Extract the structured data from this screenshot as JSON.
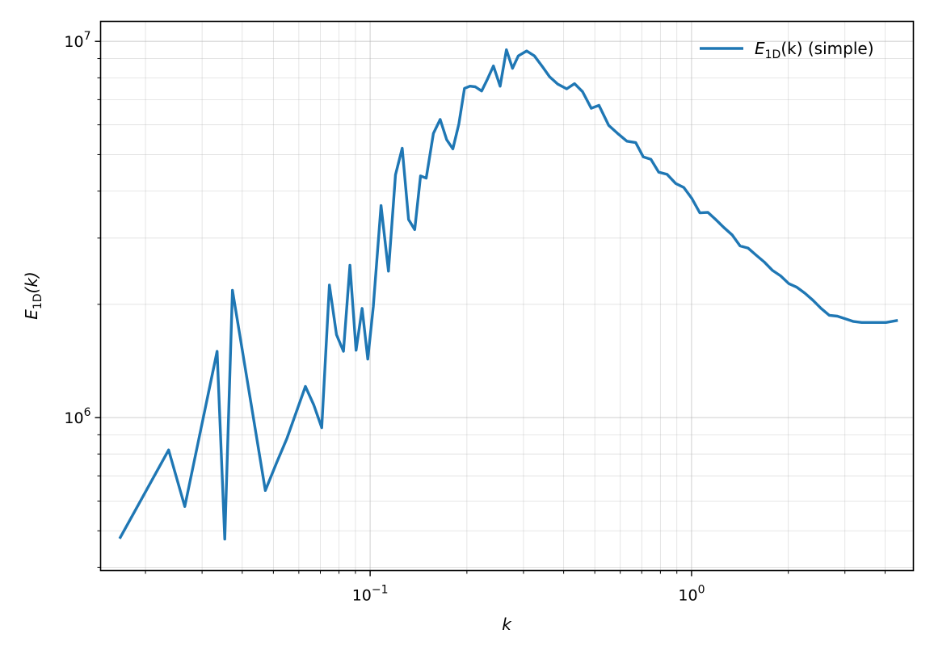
{
  "chart_data": {
    "type": "line",
    "x_scale": "log",
    "y_scale": "log",
    "xlim": [
      0.0145,
      4.9
    ],
    "ylim": [
      392000,
      11300000
    ],
    "xlabel": "k",
    "ylabel": "E_1D(k)",
    "x_tick_labels": [
      {
        "base": "10",
        "exp": "−1",
        "value": 0.1
      },
      {
        "base": "10",
        "exp": "0",
        "value": 1
      }
    ],
    "y_tick_labels": [
      {
        "base": "10",
        "exp": "6",
        "value": 1000000
      },
      {
        "base": "10",
        "exp": "7",
        "value": 10000000
      }
    ],
    "grid": true,
    "legend": {
      "placement": "top-right",
      "entry": {
        "symbol": "E",
        "sub": "1D",
        "suffix": "(k) (simple)"
      }
    },
    "series": [
      {
        "name": "E1D(k) (simple)",
        "color": "#1f77b4",
        "x": [
          0.0167,
          0.0236,
          0.0265,
          0.0334,
          0.0353,
          0.0373,
          0.0472,
          0.0512,
          0.0551,
          0.0629,
          0.0668,
          0.0707,
          0.0747,
          0.0786,
          0.0826,
          0.0865,
          0.0904,
          0.0944,
          0.0983,
          0.1023,
          0.1081,
          0.114,
          0.1199,
          0.1258,
          0.1317,
          0.1376,
          0.1435,
          0.1494,
          0.1573,
          0.1652,
          0.173,
          0.1809,
          0.1888,
          0.1966,
          0.2045,
          0.2124,
          0.2222,
          0.232,
          0.2419,
          0.2537,
          0.2655,
          0.2773,
          0.2891,
          0.3068,
          0.3244,
          0.3441,
          0.3618,
          0.3834,
          0.4089,
          0.4325,
          0.458,
          0.4875,
          0.515,
          0.5524,
          0.5878,
          0.6291,
          0.6704,
          0.7078,
          0.7471,
          0.7903,
          0.8395,
          0.8926,
          0.9456,
          1.0026,
          1.0615,
          1.1245,
          1.1893,
          1.2601,
          1.3367,
          1.4154,
          1.4999,
          1.5904,
          1.6847,
          1.7868,
          1.893,
          2.0071,
          2.127,
          2.2529,
          2.3867,
          2.5302,
          2.6816,
          2.8428,
          3.0099,
          3.1906,
          3.3832,
          3.5836,
          3.7978,
          4.0258,
          4.34
        ],
        "y": [
          480000,
          820000,
          580000,
          1500000,
          475000,
          2180000,
          640000,
          760000,
          880000,
          1210000,
          1080000,
          940000,
          2250000,
          1660000,
          1500000,
          2540000,
          1510000,
          1950000,
          1430000,
          1970000,
          3660000,
          2450000,
          4420000,
          5200000,
          3360000,
          3160000,
          4390000,
          4330000,
          5690000,
          6200000,
          5480000,
          5180000,
          6030000,
          7500000,
          7600000,
          7570000,
          7380000,
          7950000,
          8600000,
          7600000,
          9500000,
          8480000,
          9150000,
          9430000,
          9150000,
          8550000,
          8050000,
          7700000,
          7480000,
          7720000,
          7350000,
          6640000,
          6760000,
          5980000,
          5700000,
          5430000,
          5380000,
          4930000,
          4860000,
          4490000,
          4430000,
          4190000,
          4090000,
          3820000,
          3500000,
          3510000,
          3360000,
          3200000,
          3060000,
          2860000,
          2820000,
          2700000,
          2590000,
          2460000,
          2380000,
          2270000,
          2220000,
          2140000,
          2050000,
          1950000,
          1870000,
          1860000,
          1830000,
          1800000,
          1790000,
          1790000,
          1790000,
          1790000,
          1810000
        ]
      }
    ]
  }
}
